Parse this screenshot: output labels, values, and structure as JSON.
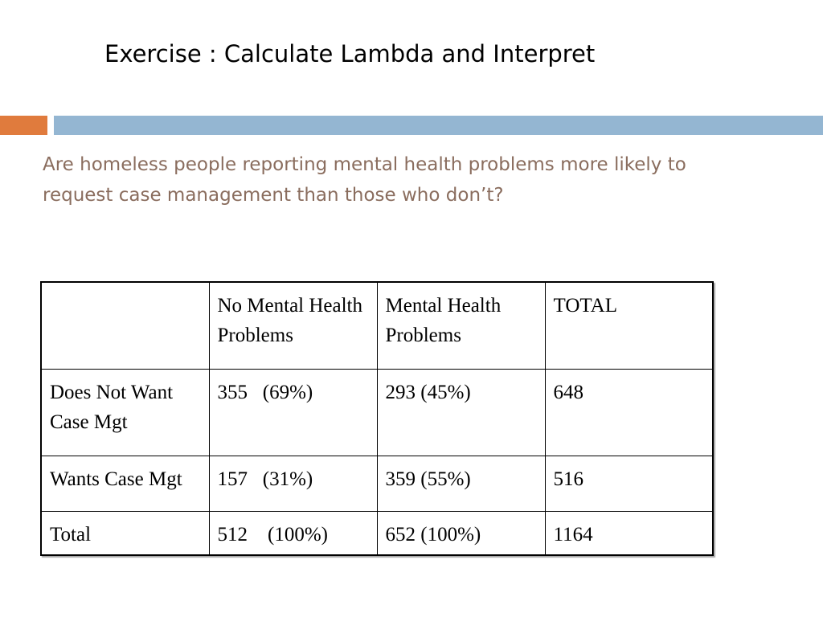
{
  "slide": {
    "title": "Exercise : Calculate Lambda and Interpret",
    "question": "Are homeless people reporting mental health problems more likely to request case management than those who don’t?"
  },
  "colors": {
    "title_text": "#000000",
    "question_text": "#8a6d5e",
    "divider_accent": "#e07b3d",
    "divider_main": "#94b6d2",
    "table_border": "#000000"
  },
  "table": {
    "headers": [
      "",
      "No Mental Health Problems",
      "Mental Health Problems",
      "TOTAL"
    ],
    "rows": [
      [
        "Does Not Want Case Mgt",
        "355   (69%)",
        "293 (45%)",
        "648"
      ],
      [
        "Wants Case Mgt",
        "157   (31%)",
        "359 (55%)",
        "516"
      ],
      [
        "Total",
        "512    (100%)",
        "652 (100%)",
        "1164"
      ]
    ]
  }
}
